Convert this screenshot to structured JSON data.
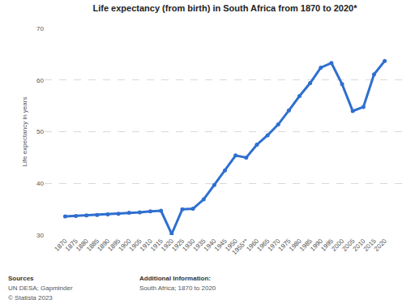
{
  "chart_data": {
    "type": "line",
    "title": "Life expectancy (from birth) in South Africa from 1870 to 2020*",
    "y_label": "Life expectancy in years",
    "categories": [
      "1870",
      "1875",
      "1880",
      "1885",
      "1890",
      "1895",
      "1900",
      "1905",
      "1910",
      "1915",
      "1920",
      "1925",
      "1930",
      "1935",
      "1940",
      "1945",
      "1950",
      "1955**",
      "1960",
      "1965",
      "1970",
      "1975",
      "1980",
      "1985",
      "1990",
      "1995",
      "2000",
      "2005",
      "2010",
      "2015",
      "2020"
    ],
    "values": [
      33.6,
      33.7,
      33.8,
      33.9,
      34.0,
      34.1,
      34.3,
      34.4,
      34.6,
      34.7,
      30.2,
      35.0,
      35.1,
      36.9,
      39.7,
      42.5,
      45.4,
      45.0,
      47.5,
      49.3,
      51.4,
      54.1,
      56.9,
      59.4,
      62.4,
      63.3,
      59.2,
      54.0,
      54.8,
      61.1,
      63.7
    ],
    "color": "#2f6fcf",
    "marker": "circle",
    "ylim": [
      30,
      70
    ],
    "yticks": [
      30,
      40,
      50,
      60,
      70
    ],
    "grid": true,
    "annotations": [
      "Sources",
      "UN DESA; Gapminder",
      "© Statista 2023",
      "Additional Information:",
      "South Africa; 1870 to 2020"
    ]
  }
}
